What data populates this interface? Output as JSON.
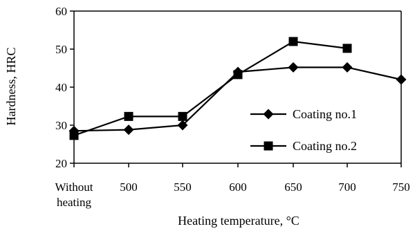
{
  "chart_data": {
    "type": "line",
    "title": "",
    "xlabel": "Heating temperature, °C",
    "ylabel": "Hardness, HRC",
    "categories": [
      "Without heating",
      "500",
      "550",
      "600",
      "650",
      "700",
      "750"
    ],
    "ylim": [
      20,
      60
    ],
    "yticks": [
      20,
      30,
      40,
      50,
      60
    ],
    "grid": false,
    "legend_position": "right",
    "series": [
      {
        "name": "Coating no.1",
        "marker": "diamond",
        "color": "#000000",
        "values": [
          28.5,
          28.8,
          30,
          44,
          45.2,
          45.2,
          42
        ]
      },
      {
        "name": "Coating no.2",
        "marker": "square",
        "color": "#000000",
        "values": [
          27.3,
          32.3,
          32.3,
          43.3,
          52,
          50.2,
          null
        ]
      }
    ]
  }
}
